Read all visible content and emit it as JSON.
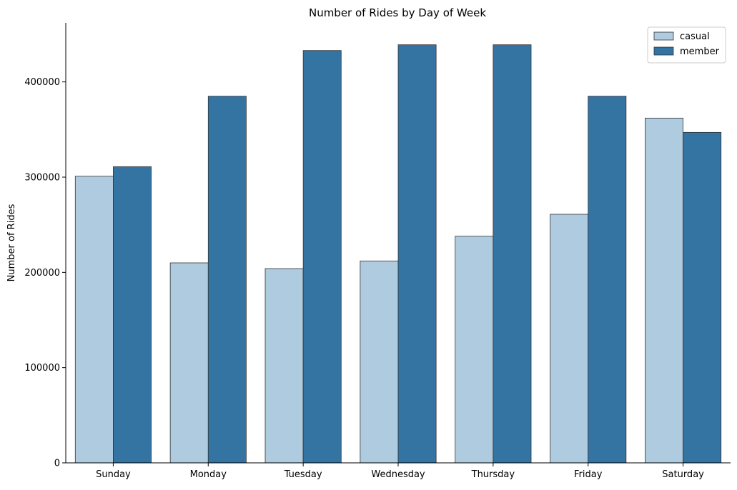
{
  "chart_data": {
    "type": "bar",
    "title": "Number of Rides by Day of Week",
    "xlabel": "",
    "ylabel": "Number of Rides",
    "categories": [
      "Sunday",
      "Monday",
      "Tuesday",
      "Wednesday",
      "Thursday",
      "Friday",
      "Saturday"
    ],
    "series": [
      {
        "name": "casual",
        "color": "#afcbdf",
        "values": [
          301000,
          210000,
          204000,
          212000,
          238000,
          261000,
          362000
        ]
      },
      {
        "name": "member",
        "color": "#3474a2",
        "values": [
          311000,
          385000,
          433000,
          439000,
          439000,
          385000,
          347000
        ]
      }
    ],
    "yticks": [
      0,
      100000,
      200000,
      300000,
      400000
    ],
    "ytick_labels": [
      "0",
      "100000",
      "200000",
      "300000",
      "400000"
    ],
    "ylim": [
      0,
      462000
    ],
    "grid": false,
    "legend_position": "top-right",
    "bar_edge_color": "#333333"
  }
}
